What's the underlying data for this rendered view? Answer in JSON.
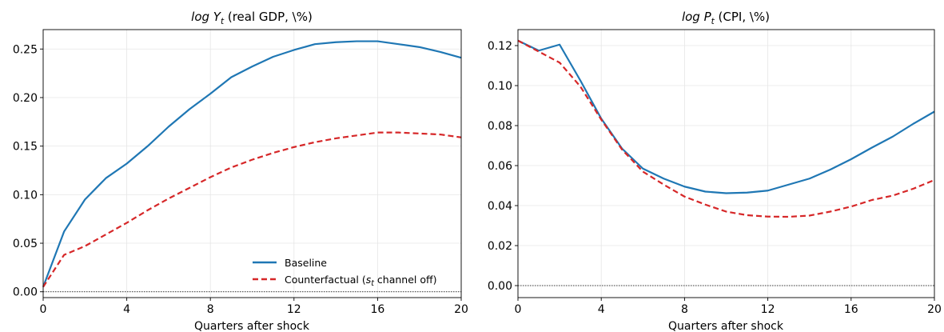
{
  "chart_data": [
    {
      "type": "line",
      "title_math": "log Y",
      "title_sub": "t",
      "title_rest": " (real GDP, \\%)",
      "xlabel": "Quarters after shock",
      "ylabel": "",
      "xlim": [
        0,
        20
      ],
      "ylim": [
        -0.006,
        0.27
      ],
      "x_ticks": [
        0,
        4,
        8,
        12,
        16,
        20
      ],
      "y_ticks": [
        0.0,
        0.05,
        0.1,
        0.15,
        0.2,
        0.25
      ],
      "y_tick_labels": [
        "0.00",
        "0.05",
        "0.10",
        "0.15",
        "0.20",
        "0.25"
      ],
      "grid": true,
      "zero_line": true,
      "legend_position": "lower-right",
      "x": [
        0,
        1,
        2,
        3,
        4,
        5,
        6,
        7,
        8,
        9,
        10,
        11,
        12,
        13,
        14,
        15,
        16,
        17,
        18,
        19,
        20
      ],
      "series": [
        {
          "name": "Baseline",
          "color": "#1f77b4",
          "style": "solid",
          "values": [
            0.005,
            0.062,
            0.095,
            0.117,
            0.132,
            0.15,
            0.17,
            0.188,
            0.204,
            0.221,
            0.232,
            0.242,
            0.249,
            0.255,
            0.257,
            0.258,
            0.258,
            0.255,
            0.252,
            0.247,
            0.241
          ]
        },
        {
          "name_prefix": "Counterfactual (",
          "name_math": "s",
          "name_sub": "t",
          "name_suffix": " channel off)",
          "color": "#d62728",
          "style": "dashed",
          "values": [
            0.005,
            0.038,
            0.047,
            0.059,
            0.071,
            0.084,
            0.096,
            0.107,
            0.118,
            0.128,
            0.136,
            0.143,
            0.149,
            0.154,
            0.158,
            0.161,
            0.164,
            0.164,
            0.163,
            0.162,
            0.159
          ]
        }
      ]
    },
    {
      "type": "line",
      "title_math": "log P",
      "title_sub": "t",
      "title_rest": " (CPI, \\%)",
      "xlabel": "Quarters after shock",
      "ylabel": "",
      "xlim": [
        0,
        20
      ],
      "ylim": [
        -0.006,
        0.128
      ],
      "x_ticks": [
        0,
        4,
        8,
        12,
        16,
        20
      ],
      "y_ticks": [
        0.0,
        0.02,
        0.04,
        0.06,
        0.08,
        0.1,
        0.12
      ],
      "y_tick_labels": [
        "0.00",
        "0.02",
        "0.04",
        "0.06",
        "0.08",
        "0.10",
        "0.12"
      ],
      "grid": true,
      "zero_line": true,
      "legend_position": "none",
      "x": [
        0,
        1,
        2,
        3,
        4,
        5,
        6,
        7,
        8,
        9,
        10,
        11,
        12,
        13,
        14,
        15,
        16,
        17,
        18,
        19,
        20
      ],
      "series": [
        {
          "name": "Baseline",
          "color": "#1f77b4",
          "style": "solid",
          "values": [
            0.1225,
            0.1175,
            0.1205,
            0.1025,
            0.0835,
            0.0685,
            0.0585,
            0.0535,
            0.0495,
            0.047,
            0.0462,
            0.0465,
            0.0475,
            0.0505,
            0.0535,
            0.058,
            0.0632,
            0.069,
            0.0745,
            0.081,
            0.087
          ]
        },
        {
          "name": "Counterfactual",
          "color": "#d62728",
          "style": "dashed",
          "values": [
            0.1225,
            0.117,
            0.1115,
            0.0995,
            0.083,
            0.068,
            0.057,
            0.0505,
            0.0445,
            0.0405,
            0.037,
            0.0352,
            0.0345,
            0.0344,
            0.035,
            0.037,
            0.0395,
            0.0428,
            0.045,
            0.0485,
            0.0528
          ]
        }
      ]
    }
  ]
}
